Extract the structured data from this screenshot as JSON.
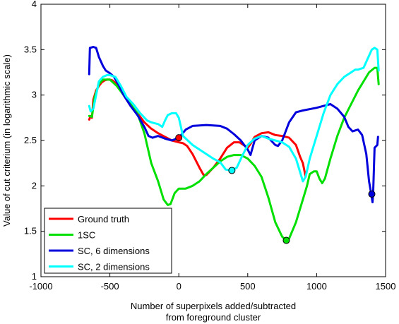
{
  "chart_data": {
    "type": "line",
    "title": "",
    "xlabel": [
      "Number of superpixels added/subtracted",
      "from foreground cluster"
    ],
    "ylabel": "Value of cut criterium (in logarithmic scale)",
    "xlim": [
      -1000,
      1500
    ],
    "ylim": [
      1,
      4
    ],
    "xticks": [
      -1000,
      -500,
      0,
      500,
      1000,
      1500
    ],
    "yticks": [
      1,
      1.5,
      2,
      2.5,
      3,
      3.5,
      4
    ],
    "xtick_labels": [
      "-1000",
      "-500",
      "0",
      "500",
      "1000",
      "1500"
    ],
    "ytick_labels": [
      "1",
      "1.5",
      "2",
      "2.5",
      "3",
      "3.5",
      "4"
    ],
    "grid": false,
    "legend_position": "bottom-left",
    "series": [
      {
        "name": "Ground truth",
        "color": "#ff0000",
        "points": [
          [
            -650,
            2.73
          ],
          [
            -640,
            2.77
          ],
          [
            -630,
            2.75
          ],
          [
            -620,
            2.95
          ],
          [
            -600,
            3.05
          ],
          [
            -580,
            3.1
          ],
          [
            -560,
            3.14
          ],
          [
            -540,
            3.16
          ],
          [
            -520,
            3.17
          ],
          [
            -500,
            3.17
          ],
          [
            -480,
            3.16
          ],
          [
            -450,
            3.12
          ],
          [
            -400,
            3.0
          ],
          [
            -350,
            2.88
          ],
          [
            -300,
            2.8
          ],
          [
            -250,
            2.7
          ],
          [
            -200,
            2.63
          ],
          [
            -150,
            2.58
          ],
          [
            -100,
            2.54
          ],
          [
            -50,
            2.5
          ],
          [
            0,
            2.48
          ],
          [
            30,
            2.47
          ],
          [
            60,
            2.44
          ],
          [
            100,
            2.35
          ],
          [
            150,
            2.2
          ],
          [
            180,
            2.12
          ],
          [
            200,
            2.12
          ],
          [
            250,
            2.2
          ],
          [
            300,
            2.3
          ],
          [
            350,
            2.42
          ],
          [
            400,
            2.48
          ],
          [
            440,
            2.48
          ],
          [
            480,
            2.44
          ],
          [
            500,
            2.42
          ],
          [
            520,
            2.46
          ],
          [
            550,
            2.54
          ],
          [
            600,
            2.58
          ],
          [
            650,
            2.59
          ],
          [
            700,
            2.56
          ],
          [
            750,
            2.55
          ],
          [
            800,
            2.53
          ],
          [
            850,
            2.45
          ],
          [
            880,
            2.32
          ],
          [
            900,
            2.25
          ],
          [
            920,
            2.1
          ]
        ],
        "marker": [
          0,
          2.53
        ]
      },
      {
        "name": "1SC",
        "color": "#00e000",
        "points": [
          [
            -650,
            2.77
          ],
          [
            -630,
            2.76
          ],
          [
            -610,
            2.98
          ],
          [
            -580,
            3.12
          ],
          [
            -550,
            3.17
          ],
          [
            -500,
            3.17
          ],
          [
            -450,
            3.1
          ],
          [
            -400,
            3.0
          ],
          [
            -350,
            2.9
          ],
          [
            -300,
            2.8
          ],
          [
            -250,
            2.58
          ],
          [
            -200,
            2.25
          ],
          [
            -150,
            2.05
          ],
          [
            -110,
            1.85
          ],
          [
            -80,
            1.79
          ],
          [
            -60,
            1.8
          ],
          [
            -30,
            1.92
          ],
          [
            0,
            1.97
          ],
          [
            50,
            1.97
          ],
          [
            100,
            2.0
          ],
          [
            150,
            2.05
          ],
          [
            200,
            2.13
          ],
          [
            250,
            2.2
          ],
          [
            300,
            2.27
          ],
          [
            350,
            2.32
          ],
          [
            400,
            2.34
          ],
          [
            450,
            2.34
          ],
          [
            500,
            2.3
          ],
          [
            550,
            2.22
          ],
          [
            600,
            2.1
          ],
          [
            650,
            1.87
          ],
          [
            700,
            1.6
          ],
          [
            750,
            1.44
          ],
          [
            780,
            1.4
          ],
          [
            800,
            1.42
          ],
          [
            850,
            1.6
          ],
          [
            900,
            1.85
          ],
          [
            930,
            2.0
          ],
          [
            950,
            2.13
          ],
          [
            980,
            2.16
          ],
          [
            1000,
            2.16
          ],
          [
            1020,
            2.08
          ],
          [
            1040,
            2.03
          ],
          [
            1060,
            2.08
          ],
          [
            1100,
            2.3
          ],
          [
            1150,
            2.55
          ],
          [
            1200,
            2.75
          ],
          [
            1250,
            2.9
          ],
          [
            1300,
            3.05
          ],
          [
            1340,
            3.15
          ],
          [
            1380,
            3.25
          ],
          [
            1420,
            3.3
          ],
          [
            1440,
            3.3
          ],
          [
            1450,
            3.12
          ]
        ],
        "marker": [
          780,
          1.4
        ]
      },
      {
        "name": "SC, 6 dimensions",
        "color": "#0000dd",
        "points": [
          [
            -650,
            3.23
          ],
          [
            -645,
            3.52
          ],
          [
            -620,
            3.53
          ],
          [
            -600,
            3.52
          ],
          [
            -580,
            3.42
          ],
          [
            -550,
            3.32
          ],
          [
            -530,
            3.27
          ],
          [
            -500,
            3.24
          ],
          [
            -470,
            3.2
          ],
          [
            -440,
            3.12
          ],
          [
            -400,
            3.0
          ],
          [
            -350,
            2.88
          ],
          [
            -300,
            2.78
          ],
          [
            -250,
            2.65
          ],
          [
            -220,
            2.55
          ],
          [
            -190,
            2.53
          ],
          [
            -150,
            2.55
          ],
          [
            -100,
            2.52
          ],
          [
            -50,
            2.5
          ],
          [
            0,
            2.53
          ],
          [
            50,
            2.62
          ],
          [
            100,
            2.66
          ],
          [
            200,
            2.67
          ],
          [
            300,
            2.66
          ],
          [
            350,
            2.63
          ],
          [
            400,
            2.57
          ],
          [
            450,
            2.5
          ],
          [
            500,
            2.4
          ],
          [
            520,
            2.34
          ],
          [
            550,
            2.5
          ],
          [
            600,
            2.55
          ],
          [
            650,
            2.53
          ],
          [
            700,
            2.45
          ],
          [
            720,
            2.44
          ],
          [
            750,
            2.5
          ],
          [
            800,
            2.7
          ],
          [
            850,
            2.81
          ],
          [
            900,
            2.83
          ],
          [
            1000,
            2.86
          ],
          [
            1050,
            2.88
          ],
          [
            1100,
            2.9
          ],
          [
            1150,
            2.85
          ],
          [
            1200,
            2.76
          ],
          [
            1230,
            2.65
          ],
          [
            1260,
            2.6
          ],
          [
            1300,
            2.62
          ],
          [
            1330,
            2.56
          ],
          [
            1360,
            2.35
          ],
          [
            1380,
            2.05
          ],
          [
            1395,
            1.92
          ],
          [
            1405,
            1.82
          ],
          [
            1410,
            1.92
          ],
          [
            1420,
            2.42
          ],
          [
            1440,
            2.45
          ],
          [
            1445,
            2.54
          ]
        ],
        "marker": [
          1400,
          1.91
        ]
      },
      {
        "name": "SC, 2 dimensions",
        "color": "#00ffff",
        "points": [
          [
            -650,
            2.88
          ],
          [
            -640,
            2.82
          ],
          [
            -620,
            2.85
          ],
          [
            -600,
            3.0
          ],
          [
            -580,
            3.15
          ],
          [
            -550,
            3.2
          ],
          [
            -520,
            3.22
          ],
          [
            -500,
            3.22
          ],
          [
            -460,
            3.2
          ],
          [
            -420,
            3.1
          ],
          [
            -380,
            2.98
          ],
          [
            -330,
            2.9
          ],
          [
            -280,
            2.8
          ],
          [
            -230,
            2.72
          ],
          [
            -200,
            2.7
          ],
          [
            -150,
            2.68
          ],
          [
            -120,
            2.65
          ],
          [
            -100,
            2.72
          ],
          [
            -80,
            2.78
          ],
          [
            -50,
            2.8
          ],
          [
            -20,
            2.8
          ],
          [
            0,
            2.75
          ],
          [
            30,
            2.55
          ],
          [
            100,
            2.45
          ],
          [
            150,
            2.4
          ],
          [
            200,
            2.35
          ],
          [
            250,
            2.3
          ],
          [
            300,
            2.26
          ],
          [
            340,
            2.18
          ],
          [
            380,
            2.17
          ],
          [
            420,
            2.2
          ],
          [
            460,
            2.33
          ],
          [
            500,
            2.45
          ],
          [
            550,
            2.52
          ],
          [
            600,
            2.55
          ],
          [
            650,
            2.52
          ],
          [
            700,
            2.5
          ],
          [
            750,
            2.48
          ],
          [
            800,
            2.43
          ],
          [
            850,
            2.3
          ],
          [
            880,
            2.15
          ],
          [
            900,
            2.05
          ],
          [
            920,
            2.1
          ],
          [
            950,
            2.3
          ],
          [
            1000,
            2.55
          ],
          [
            1050,
            2.8
          ],
          [
            1100,
            3.0
          ],
          [
            1150,
            3.12
          ],
          [
            1200,
            3.2
          ],
          [
            1250,
            3.25
          ],
          [
            1280,
            3.28
          ],
          [
            1300,
            3.28
          ],
          [
            1340,
            3.3
          ],
          [
            1370,
            3.4
          ],
          [
            1400,
            3.5
          ],
          [
            1420,
            3.52
          ],
          [
            1440,
            3.5
          ],
          [
            1450,
            3.27
          ]
        ],
        "marker": [
          385,
          2.17
        ]
      }
    ]
  }
}
